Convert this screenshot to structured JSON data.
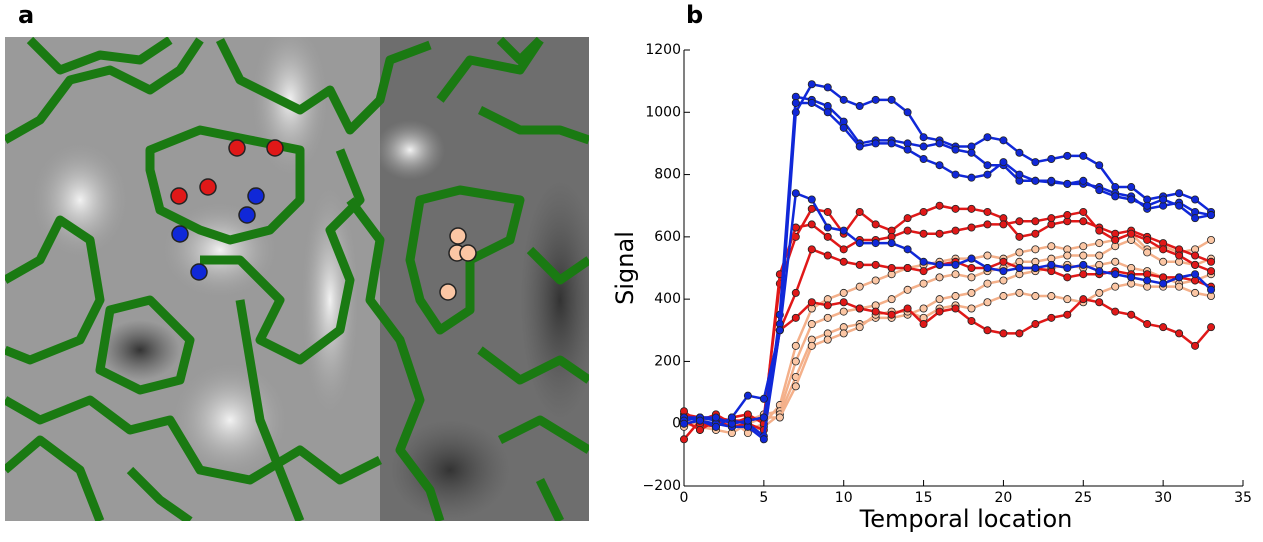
{
  "panel_a": {
    "label": "a"
  },
  "chart_data": {
    "type": "line",
    "panel_label": "b",
    "xlabel": "Temporal location",
    "ylabel": "Signal",
    "x": [
      0,
      1,
      2,
      3,
      4,
      5,
      6,
      7,
      8,
      9,
      10,
      11,
      12,
      13,
      14,
      15,
      16,
      17,
      18,
      19,
      20,
      21,
      22,
      23,
      24,
      25,
      26,
      27,
      28,
      29,
      30,
      31,
      32,
      33
    ],
    "xlim": [
      0,
      35
    ],
    "xticks": [
      0,
      5,
      10,
      15,
      20,
      25,
      30,
      35
    ],
    "ylim": [
      -200,
      1200
    ],
    "yticks": [
      {
        "value": -200,
        "label": "−200"
      },
      0,
      200,
      400,
      600,
      800,
      1000,
      1200
    ],
    "series": [
      {
        "color": "#f4b08a",
        "marker": "#fbc6a4",
        "values": [
          10,
          0,
          -10,
          20,
          -20,
          0,
          60,
          250,
          370,
          400,
          420,
          440,
          460,
          480,
          500,
          510,
          520,
          530,
          530,
          540,
          530,
          550,
          560,
          570,
          560,
          570,
          580,
          590,
          610,
          560,
          570,
          550,
          560,
          590
        ]
      },
      {
        "color": "#f4b08a",
        "marker": "#fbc6a4",
        "values": [
          -10,
          10,
          20,
          -10,
          10,
          30,
          40,
          200,
          320,
          340,
          360,
          370,
          380,
          400,
          430,
          450,
          470,
          480,
          470,
          490,
          500,
          520,
          520,
          530,
          540,
          540,
          540,
          570,
          590,
          550,
          520,
          520,
          510,
          530
        ]
      },
      {
        "color": "#f4b08a",
        "marker": "#fbc6a4",
        "values": [
          20,
          -20,
          0,
          10,
          -30,
          -10,
          30,
          150,
          270,
          290,
          310,
          320,
          340,
          340,
          350,
          370,
          400,
          410,
          420,
          450,
          460,
          480,
          490,
          500,
          510,
          500,
          510,
          520,
          500,
          490,
          470,
          450,
          460,
          480
        ]
      },
      {
        "color": "#f4b08a",
        "marker": "#fbc6a4",
        "values": [
          0,
          -10,
          -20,
          -30,
          0,
          20,
          20,
          120,
          250,
          270,
          290,
          310,
          350,
          360,
          360,
          340,
          370,
          380,
          370,
          390,
          410,
          420,
          410,
          410,
          400,
          390,
          420,
          440,
          450,
          440,
          440,
          440,
          420,
          410
        ]
      },
      {
        "color": "#e01818",
        "marker": "#e01818",
        "values": [
          30,
          20,
          20,
          10,
          10,
          20,
          450,
          600,
          690,
          680,
          610,
          680,
          640,
          620,
          660,
          680,
          700,
          690,
          690,
          680,
          660,
          600,
          610,
          640,
          650,
          650,
          630,
          610,
          620,
          600,
          580,
          560,
          540,
          520
        ]
      },
      {
        "color": "#e01818",
        "marker": "#e01818",
        "values": [
          -50,
          10,
          30,
          0,
          20,
          10,
          480,
          630,
          640,
          600,
          560,
          590,
          590,
          600,
          620,
          610,
          610,
          620,
          630,
          640,
          640,
          650,
          650,
          660,
          670,
          680,
          620,
          590,
          610,
          590,
          560,
          540,
          510,
          490
        ]
      },
      {
        "color": "#e01818",
        "marker": "#e01818",
        "values": [
          40,
          0,
          -10,
          20,
          30,
          0,
          300,
          420,
          560,
          540,
          520,
          510,
          510,
          500,
          500,
          490,
          510,
          520,
          500,
          500,
          520,
          500,
          500,
          490,
          470,
          480,
          480,
          490,
          480,
          480,
          470,
          470,
          460,
          440
        ]
      },
      {
        "color": "#e01818",
        "marker": "#e01818",
        "values": [
          10,
          -20,
          10,
          -10,
          0,
          -20,
          300,
          340,
          390,
          380,
          390,
          370,
          360,
          350,
          370,
          320,
          360,
          370,
          330,
          300,
          290,
          290,
          320,
          340,
          350,
          400,
          390,
          360,
          350,
          320,
          310,
          290,
          250,
          310
        ]
      },
      {
        "color": "#1028d8",
        "marker": "#1028d8",
        "values": [
          20,
          20,
          10,
          10,
          0,
          -40,
          300,
          1000,
          1090,
          1080,
          1040,
          1020,
          1040,
          1040,
          1000,
          920,
          910,
          890,
          890,
          920,
          910,
          870,
          840,
          850,
          860,
          860,
          830,
          760,
          760,
          720,
          730,
          740,
          720,
          680
        ]
      },
      {
        "color": "#1028d8",
        "marker": "#1028d8",
        "values": [
          20,
          10,
          0,
          -10,
          -10,
          -50,
          350,
          1050,
          1040,
          1020,
          970,
          900,
          910,
          910,
          900,
          890,
          900,
          880,
          870,
          830,
          830,
          780,
          780,
          775,
          770,
          770,
          760,
          740,
          730,
          690,
          700,
          710,
          680,
          670
        ]
      },
      {
        "color": "#1028d8",
        "marker": "#1028d8",
        "values": [
          10,
          20,
          20,
          0,
          10,
          20,
          320,
          1030,
          1030,
          1000,
          950,
          890,
          900,
          900,
          880,
          850,
          830,
          800,
          790,
          800,
          840,
          800,
          780,
          780,
          770,
          780,
          750,
          730,
          720,
          700,
          720,
          700,
          660,
          670
        ]
      },
      {
        "color": "#1028d8",
        "marker": "#1028d8",
        "values": [
          0,
          10,
          -10,
          20,
          90,
          80,
          300,
          740,
          720,
          630,
          620,
          580,
          580,
          580,
          560,
          520,
          510,
          510,
          530,
          500,
          490,
          500,
          500,
          510,
          500,
          510,
          490,
          480,
          470,
          460,
          450,
          470,
          480,
          430
        ]
      }
    ]
  }
}
